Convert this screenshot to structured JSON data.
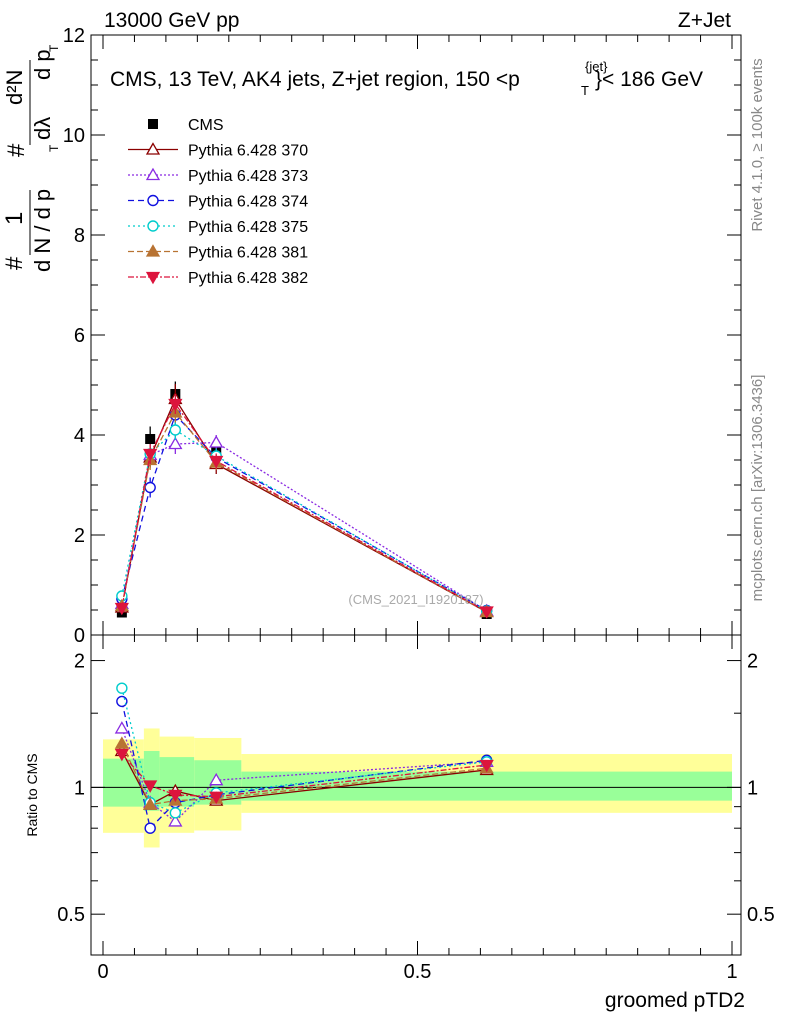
{
  "header": {
    "left": "13000 GeV pp",
    "right": "Z+Jet"
  },
  "title": {
    "main": "CMS, 13 TeV, AK4 jets, Z+jet region, 150 <p",
    "sup": "{jet}",
    "sub": "T",
    "tail": "}< 186 GeV"
  },
  "side": {
    "rivet": "Rivet 4.1.0, ≥ 100k events",
    "site": "mcplots.cern.ch [arXiv:1306.3436]"
  },
  "watermark": "(CMS_2021_I1920187)",
  "ylabel_main": {
    "one": "1",
    "hash": "#",
    "num": "d²N",
    "den1": "d N / d p",
    "den_sub": "T",
    "mid1": "#",
    "mid2": "d p",
    "mid_sub": "T",
    "dl": "dλ"
  },
  "ylabel_ratio": "Ratio to CMS",
  "xlabel": "groomed pTD2",
  "chart_data": [
    {
      "type": "line",
      "title": "CMS, 13 TeV, AK4 jets, Z+jet region, 150 <p_T^{jet}< 186 GeV",
      "xlim": [
        0,
        1
      ],
      "ylim": [
        0,
        12
      ],
      "yticks": [
        0,
        2,
        4,
        6,
        8,
        10,
        12
      ],
      "ytick_labels": [
        "0",
        "2",
        "4",
        "6",
        "8",
        "10",
        "12"
      ],
      "legend": "top-left",
      "series": [
        {
          "name": "CMS",
          "color": "#000000",
          "marker": "square",
          "dash": "",
          "line": false,
          "x": [
            0.03,
            0.075,
            0.115,
            0.18,
            0.61
          ],
          "y": [
            0.45,
            3.92,
            4.82,
            3.7,
            0.42
          ],
          "err": [
            0.05,
            0.25,
            0.25,
            0.2,
            0.04
          ]
        },
        {
          "name": "Pythia 6.428 370",
          "color": "#8b0000",
          "marker": "tri-up-open",
          "dash": "",
          "line": true,
          "x": [
            0.03,
            0.075,
            0.115,
            0.18,
            0.61
          ],
          "y": [
            0.55,
            3.55,
            4.72,
            3.42,
            0.46
          ],
          "err": [
            0.05,
            0.2,
            0.3,
            0.2,
            0.04
          ]
        },
        {
          "name": "Pythia 6.428 373",
          "color": "#8a2be2",
          "marker": "tri-up-open",
          "dash": "2,2",
          "line": true,
          "x": [
            0.03,
            0.075,
            0.115,
            0.18,
            0.61
          ],
          "y": [
            0.62,
            3.6,
            3.82,
            3.85,
            0.48
          ],
          "err": [
            0.05,
            0.2,
            0.2,
            0.15,
            0.04
          ]
        },
        {
          "name": "Pythia 6.428 374",
          "color": "#1010e0",
          "marker": "circle-open",
          "dash": "6,4",
          "line": true,
          "x": [
            0.03,
            0.075,
            0.115,
            0.18,
            0.61
          ],
          "y": [
            0.72,
            2.95,
            4.4,
            3.55,
            0.49
          ],
          "err": [
            0.05,
            0.2,
            0.2,
            0.15,
            0.04
          ]
        },
        {
          "name": "Pythia 6.428 375",
          "color": "#00cccc",
          "marker": "circle-open",
          "dash": "2,3",
          "line": true,
          "x": [
            0.03,
            0.075,
            0.115,
            0.18,
            0.61
          ],
          "y": [
            0.78,
            3.62,
            4.1,
            3.58,
            0.48
          ],
          "err": [
            0.05,
            0.2,
            0.2,
            0.15,
            0.04
          ]
        },
        {
          "name": "Pythia 6.428 381",
          "color": "#b87333",
          "marker": "tri-up-filled",
          "dash": "6,3",
          "line": true,
          "x": [
            0.03,
            0.075,
            0.115,
            0.18,
            0.61
          ],
          "y": [
            0.58,
            3.5,
            4.45,
            3.45,
            0.46
          ],
          "err": [
            0.05,
            0.2,
            0.2,
            0.15,
            0.04
          ]
        },
        {
          "name": "Pythia 6.428 382",
          "color": "#dc143c",
          "marker": "tri-down-filled",
          "dash": "6,2,2,2",
          "line": true,
          "x": [
            0.03,
            0.075,
            0.115,
            0.18,
            0.61
          ],
          "y": [
            0.54,
            3.62,
            4.62,
            3.48,
            0.47
          ],
          "err": [
            0.05,
            0.2,
            0.2,
            0.15,
            0.04
          ]
        }
      ]
    },
    {
      "type": "line",
      "ylabel": "Ratio to CMS",
      "xlabel": "groomed pTD2",
      "xlim": [
        0,
        1
      ],
      "ylim": [
        0.4,
        2.3
      ],
      "yscale": "log",
      "yticks": [
        0.5,
        1,
        2
      ],
      "ytick_labels": [
        "0.5",
        "1",
        "2"
      ],
      "xticks": [
        0,
        0.5,
        1
      ],
      "xtick_labels": [
        "0",
        "0.5",
        "1"
      ],
      "bands": {
        "edges": [
          0,
          0.065,
          0.09,
          0.145,
          0.22,
          1.0
        ],
        "yellow": [
          [
            0.78,
            1.3
          ],
          [
            0.72,
            1.38
          ],
          [
            0.78,
            1.32
          ],
          [
            0.79,
            1.31
          ],
          [
            0.87,
            1.2
          ]
        ],
        "green": [
          [
            0.9,
            1.17
          ],
          [
            0.88,
            1.22
          ],
          [
            0.9,
            1.18
          ],
          [
            0.91,
            1.16
          ],
          [
            0.93,
            1.09
          ]
        ]
      },
      "series": [
        {
          "name": "Pythia 6.428 370",
          "color": "#8b0000",
          "marker": "tri-up-open",
          "dash": "",
          "x": [
            0.03,
            0.075,
            0.115,
            0.18,
            0.61
          ],
          "y": [
            1.22,
            0.91,
            0.98,
            0.93,
            1.1
          ]
        },
        {
          "name": "Pythia 6.428 373",
          "color": "#8a2be2",
          "marker": "tri-up-open",
          "dash": "2,2",
          "x": [
            0.03,
            0.075,
            0.115,
            0.18,
            0.61
          ],
          "y": [
            1.38,
            0.92,
            0.83,
            1.04,
            1.15
          ]
        },
        {
          "name": "Pythia 6.428 374",
          "color": "#1010e0",
          "marker": "circle-open",
          "dash": "6,4",
          "x": [
            0.03,
            0.075,
            0.115,
            0.18,
            0.61
          ],
          "y": [
            1.6,
            0.8,
            0.92,
            0.96,
            1.16
          ]
        },
        {
          "name": "Pythia 6.428 375",
          "color": "#00cccc",
          "marker": "circle-open",
          "dash": "2,3",
          "x": [
            0.03,
            0.075,
            0.115,
            0.18,
            0.61
          ],
          "y": [
            1.72,
            0.92,
            0.87,
            0.97,
            1.15
          ]
        },
        {
          "name": "Pythia 6.428 381",
          "color": "#b87333",
          "marker": "tri-up-filled",
          "dash": "6,3",
          "x": [
            0.03,
            0.075,
            0.115,
            0.18,
            0.61
          ],
          "y": [
            1.27,
            0.91,
            0.93,
            0.94,
            1.11
          ]
        },
        {
          "name": "Pythia 6.428 382",
          "color": "#dc143c",
          "marker": "tri-down-filled",
          "dash": "6,2,2,2",
          "x": [
            0.03,
            0.075,
            0.115,
            0.18,
            0.61
          ],
          "y": [
            1.2,
            1.01,
            0.96,
            0.95,
            1.13
          ]
        }
      ]
    }
  ]
}
